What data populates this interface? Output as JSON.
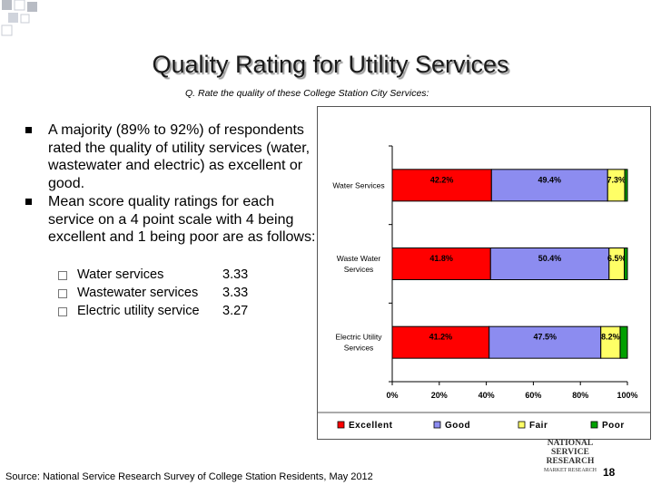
{
  "slide": {
    "title": "Quality Rating for Utility Services",
    "subtitle": "Q. Rate the quality of these College Station City Services:",
    "bullets": [
      "A majority (89% to 92%) of respondents rated the quality of utility services (water, wastewater and electric) as excellent or good.",
      "Mean score quality ratings for each service on a 4 point scale with 4 being excellent and 1 being poor are as follows:"
    ],
    "mean_scores": [
      {
        "label": "Water services",
        "value": "3.33"
      },
      {
        "label": "Wastewater services",
        "value": "3.33"
      },
      {
        "label": "Electric utility service",
        "value": "3.27"
      }
    ],
    "source": "Source: National Service Research Survey of College Station Residents, May 2012",
    "page_number": "18",
    "logo": {
      "line1": "NATIONAL",
      "line2": "SERVICE",
      "line3": "RESEARCH",
      "line4": "MARKET RESEARCH"
    }
  },
  "chart_data": {
    "type": "bar",
    "orientation": "horizontal",
    "stacked": true,
    "categories": [
      [
        "Water Services"
      ],
      [
        "Waste Water",
        "Services"
      ],
      [
        "Electric Utility",
        "Services"
      ]
    ],
    "series": [
      {
        "name": "Excellent",
        "color": "#ff0000",
        "values": [
          42.2,
          41.8,
          41.2
        ]
      },
      {
        "name": "Good",
        "color": "#8c8cf0",
        "values": [
          49.4,
          50.4,
          47.5
        ]
      },
      {
        "name": "Fair",
        "color": "#ffff66",
        "values": [
          7.3,
          6.5,
          8.2
        ]
      },
      {
        "name": "Poor",
        "color": "#00a000",
        "values": [
          1.1,
          1.3,
          3.1
        ]
      }
    ],
    "data_labels": [
      [
        "42.2%",
        "49.4%",
        "7.3%",
        null
      ],
      [
        "41.8%",
        "50.4%",
        "6.5%",
        null
      ],
      [
        "41.2%",
        "47.5%",
        "8.2%",
        null
      ]
    ],
    "xlim": [
      0,
      100
    ],
    "xticks": [
      "0%",
      "20%",
      "40%",
      "60%",
      "80%",
      "100%"
    ],
    "legend": "bottom",
    "grid": false
  }
}
